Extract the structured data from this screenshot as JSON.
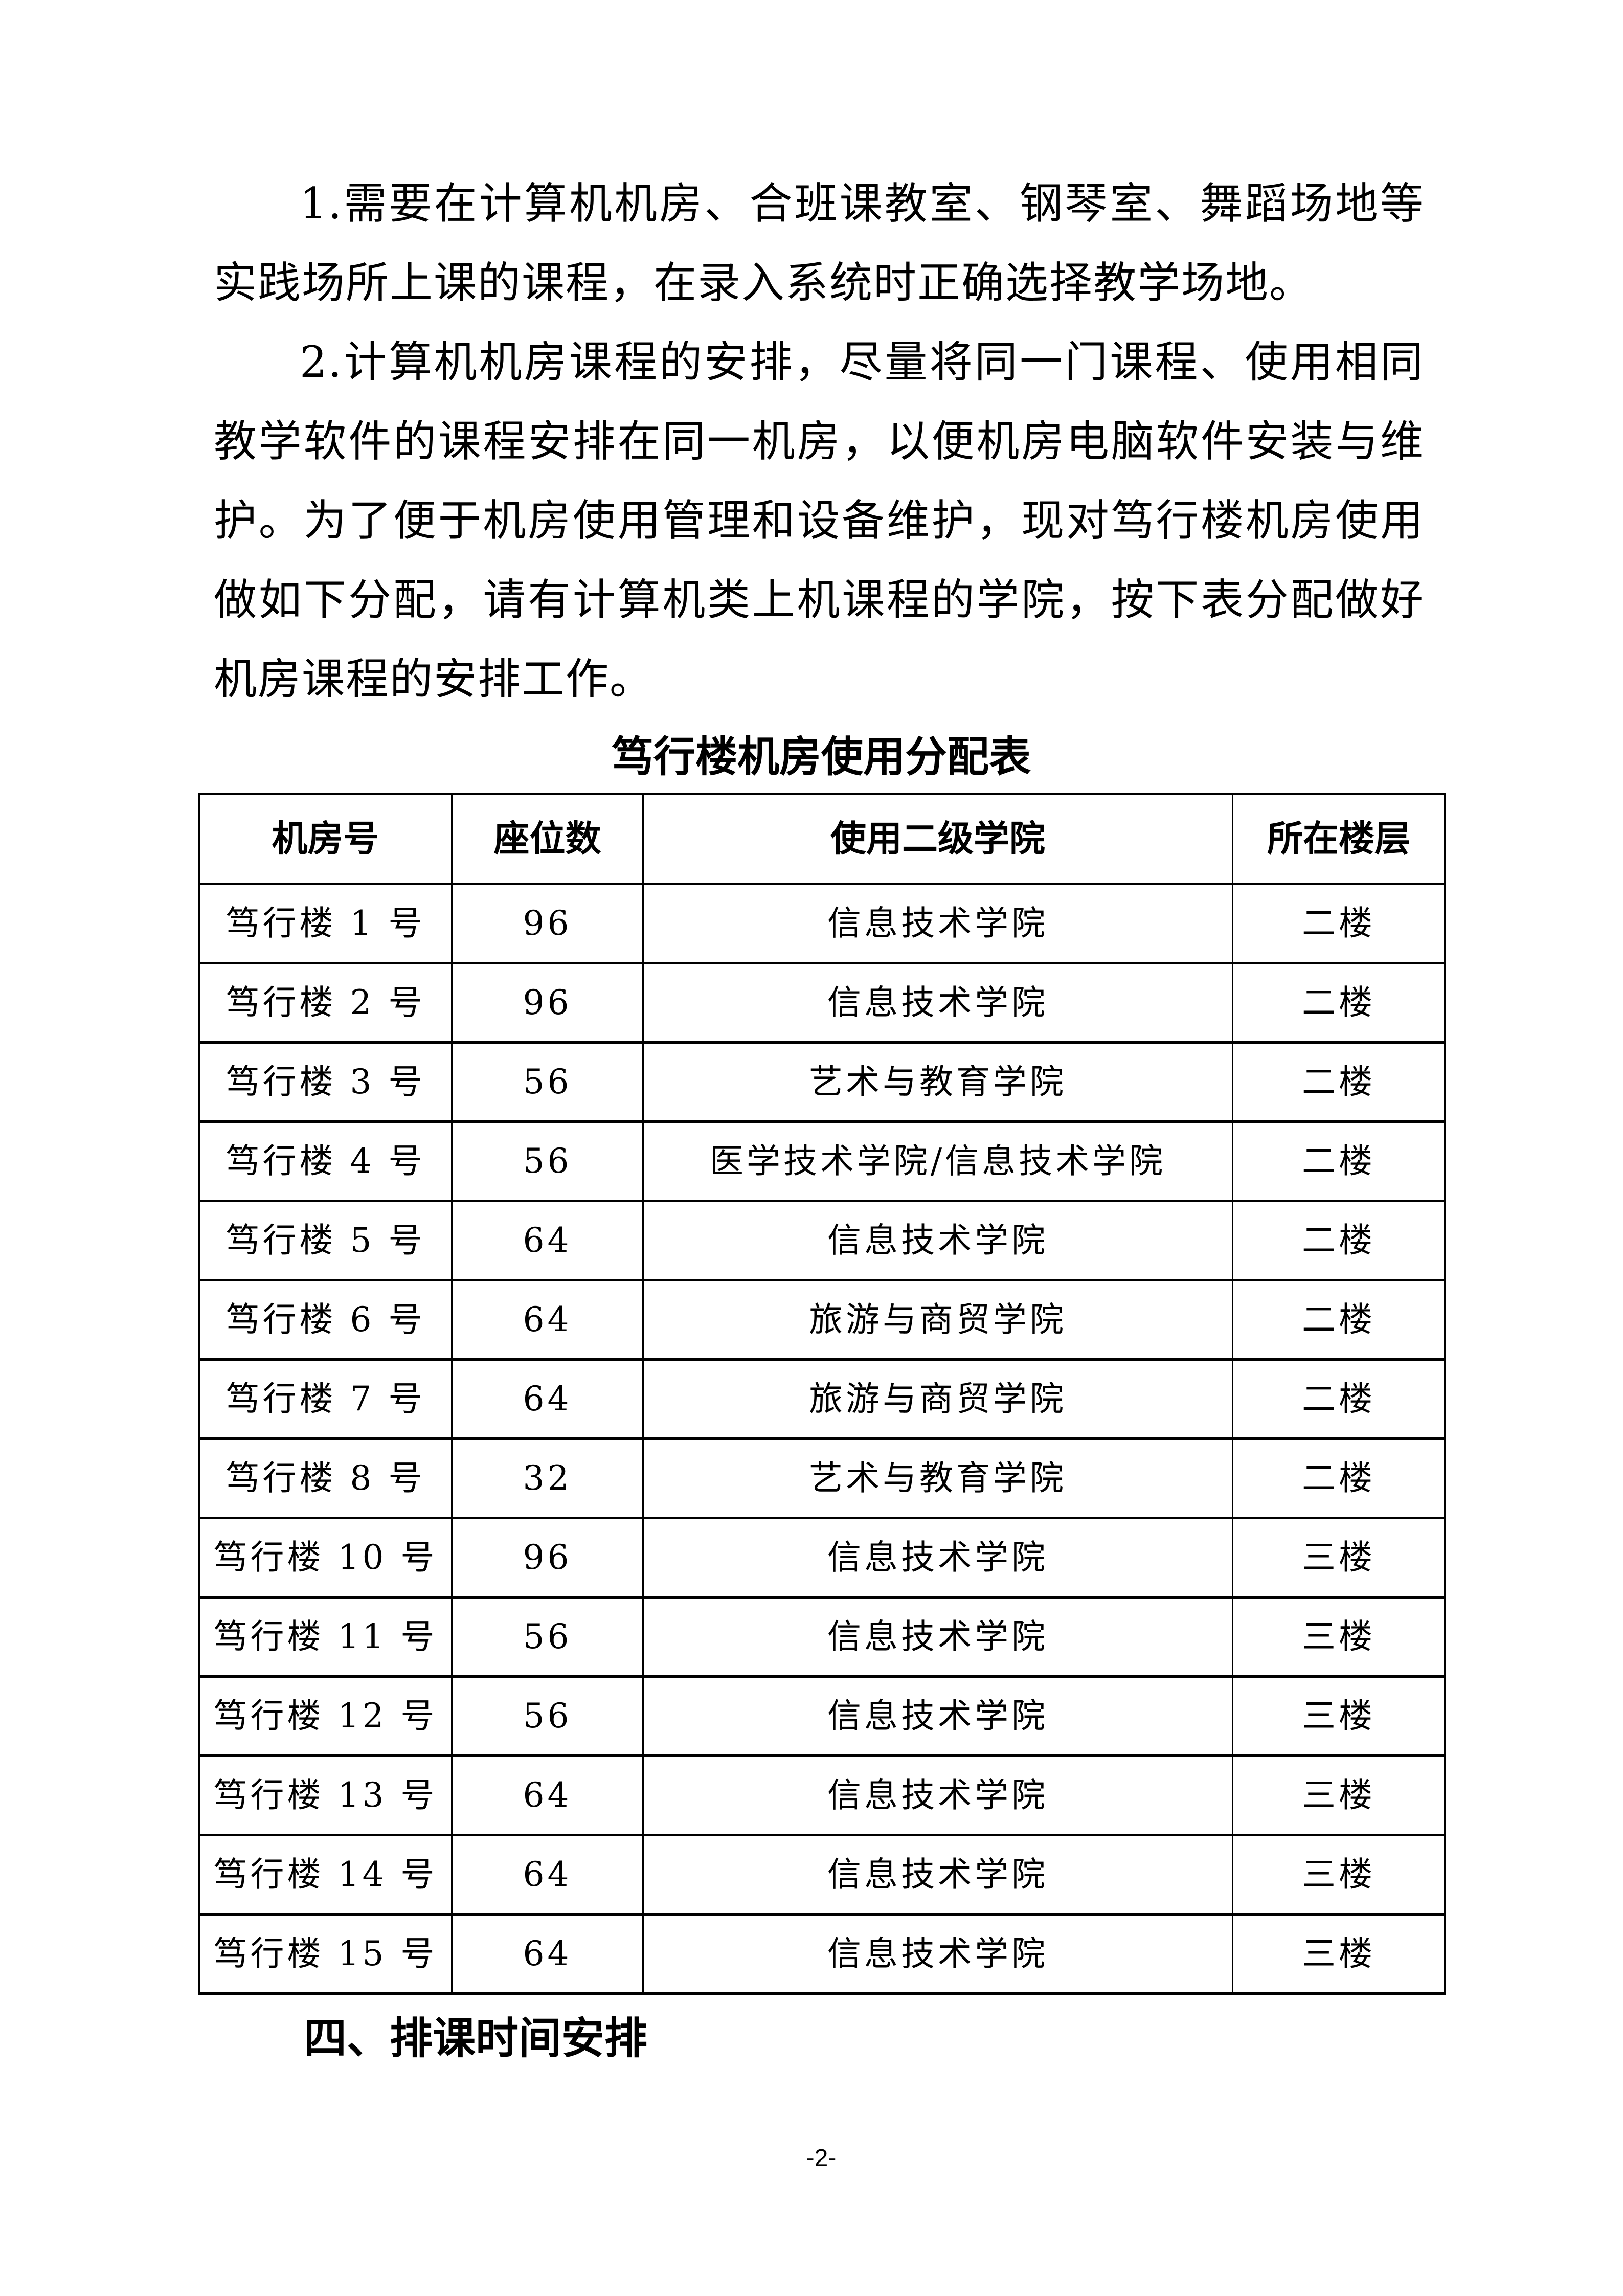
{
  "body": {
    "paragraphs": [
      "1.需要在计算机机房、合班课教室、钢琴室、舞蹈场地等实践场所上课的课程，在录入系统时正确选择教学场地。",
      "2.计算机机房课程的安排，尽量将同一门课程、使用相同教学软件的课程安排在同一机房，以便机房电脑软件安装与维护。为了便于机房使用管理和设备维护，现对笃行楼机房使用做如下分配，请有计算机类上机课程的学院，按下表分配做好机房课程的安排工作。"
    ]
  },
  "table": {
    "title": "笃行楼机房使用分配表",
    "headers": [
      "机房号",
      "座位数",
      "使用二级学院",
      "所在楼层"
    ],
    "rows": [
      [
        "笃行楼 1 号",
        "96",
        "信息技术学院",
        "二楼"
      ],
      [
        "笃行楼 2 号",
        "96",
        "信息技术学院",
        "二楼"
      ],
      [
        "笃行楼 3 号",
        "56",
        "艺术与教育学院",
        "二楼"
      ],
      [
        "笃行楼 4 号",
        "56",
        "医学技术学院/信息技术学院",
        "二楼"
      ],
      [
        "笃行楼 5 号",
        "64",
        "信息技术学院",
        "二楼"
      ],
      [
        "笃行楼 6 号",
        "64",
        "旅游与商贸学院",
        "二楼"
      ],
      [
        "笃行楼 7 号",
        "64",
        "旅游与商贸学院",
        "二楼"
      ],
      [
        "笃行楼 8 号",
        "32",
        "艺术与教育学院",
        "二楼"
      ],
      [
        "笃行楼 10 号",
        "96",
        "信息技术学院",
        "三楼"
      ],
      [
        "笃行楼 11 号",
        "56",
        "信息技术学院",
        "三楼"
      ],
      [
        "笃行楼 12 号",
        "56",
        "信息技术学院",
        "三楼"
      ],
      [
        "笃行楼 13 号",
        "64",
        "信息技术学院",
        "三楼"
      ],
      [
        "笃行楼 14 号",
        "64",
        "信息技术学院",
        "三楼"
      ],
      [
        "笃行楼 15 号",
        "64",
        "信息技术学院",
        "三楼"
      ]
    ]
  },
  "section_heading": "四、排课时间安排",
  "page_number": "-2-"
}
